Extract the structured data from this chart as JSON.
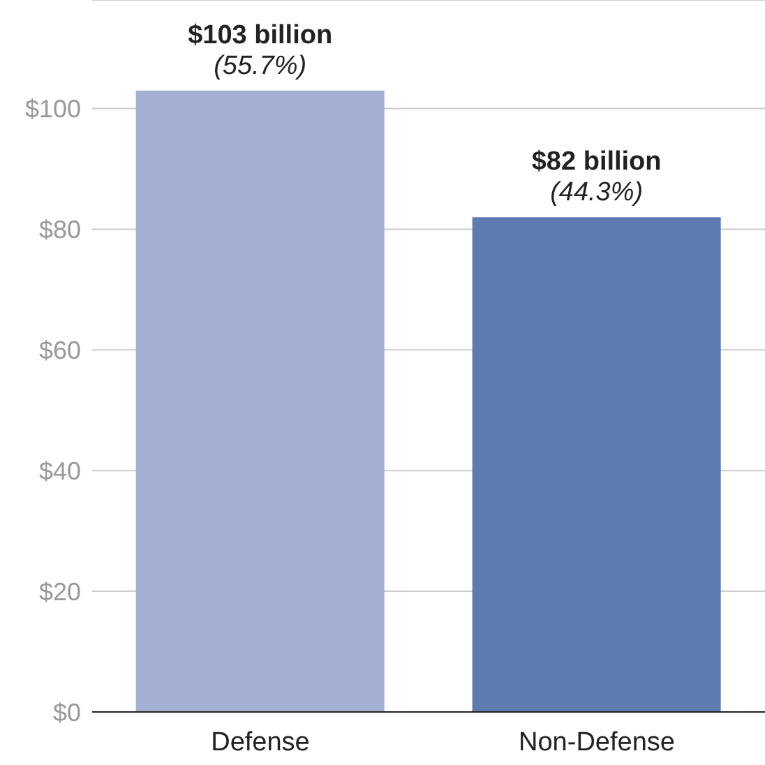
{
  "chart_data": {
    "type": "bar",
    "categories": [
      "Defense",
      "Non-Defense"
    ],
    "values": [
      103,
      82
    ],
    "colors": [
      "#a3b0d3",
      "#5d7bb0"
    ],
    "value_labels": [
      "$103 billion",
      "$82 billion"
    ],
    "annotations": [
      {
        "text": "(55.7%)",
        "x": "Defense",
        "y": 103
      },
      {
        "text": "(44.3%)",
        "x": "Non-Defense",
        "y": 82
      }
    ],
    "ylim": [
      0,
      118
    ],
    "yticks": [
      {
        "value": 0,
        "label": "$0"
      },
      {
        "value": 20,
        "label": "$20"
      },
      {
        "value": 40,
        "label": "$40"
      },
      {
        "value": 60,
        "label": "$60"
      },
      {
        "value": 80,
        "label": "$80"
      },
      {
        "value": 100,
        "label": "$100"
      }
    ],
    "grid": "y",
    "legend": false
  }
}
